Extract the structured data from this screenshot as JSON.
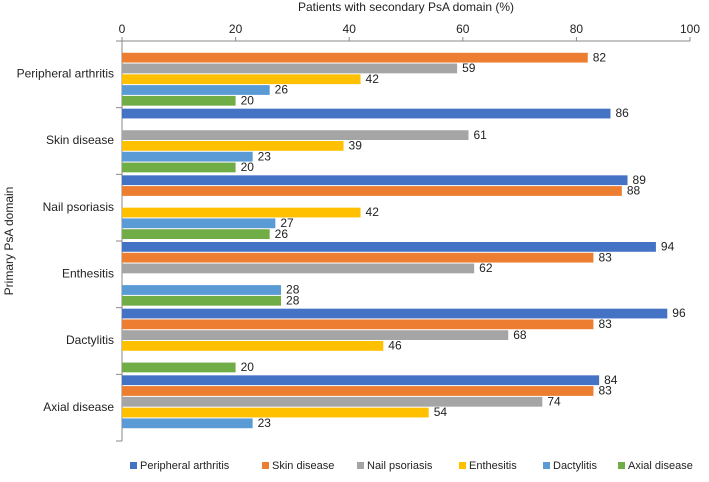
{
  "chart_data": {
    "type": "bar",
    "orientation": "horizontal",
    "title": "Patients with secondary PsA domain (%)",
    "y_label": "Primary PsA domain",
    "categories": [
      "Peripheral arthritis",
      "Skin disease",
      "Nail psoriasis",
      "Enthesitis",
      "Dactylitis",
      "Axial disease"
    ],
    "series": [
      {
        "name": "Peripheral arthritis",
        "color": "#4472c4",
        "values": [
          null,
          86,
          89,
          94,
          96,
          84
        ]
      },
      {
        "name": "Skin disease",
        "color": "#ed7d31",
        "values": [
          82,
          null,
          88,
          83,
          83,
          83
        ]
      },
      {
        "name": "Nail psoriasis",
        "color": "#a5a5a5",
        "values": [
          59,
          61,
          null,
          62,
          68,
          74
        ]
      },
      {
        "name": "Enthesitis",
        "color": "#ffc000",
        "values": [
          42,
          39,
          42,
          null,
          46,
          54
        ]
      },
      {
        "name": "Dactylitis",
        "color": "#5b9bd5",
        "values": [
          26,
          23,
          27,
          28,
          null,
          23
        ]
      },
      {
        "name": "Axial disease",
        "color": "#70ad47",
        "values": [
          20,
          20,
          26,
          28,
          20,
          null
        ]
      }
    ],
    "xlim": [
      0,
      100
    ],
    "xticks": [
      0,
      20,
      40,
      60,
      80,
      100
    ],
    "grid": false,
    "legend": "bottom"
  }
}
